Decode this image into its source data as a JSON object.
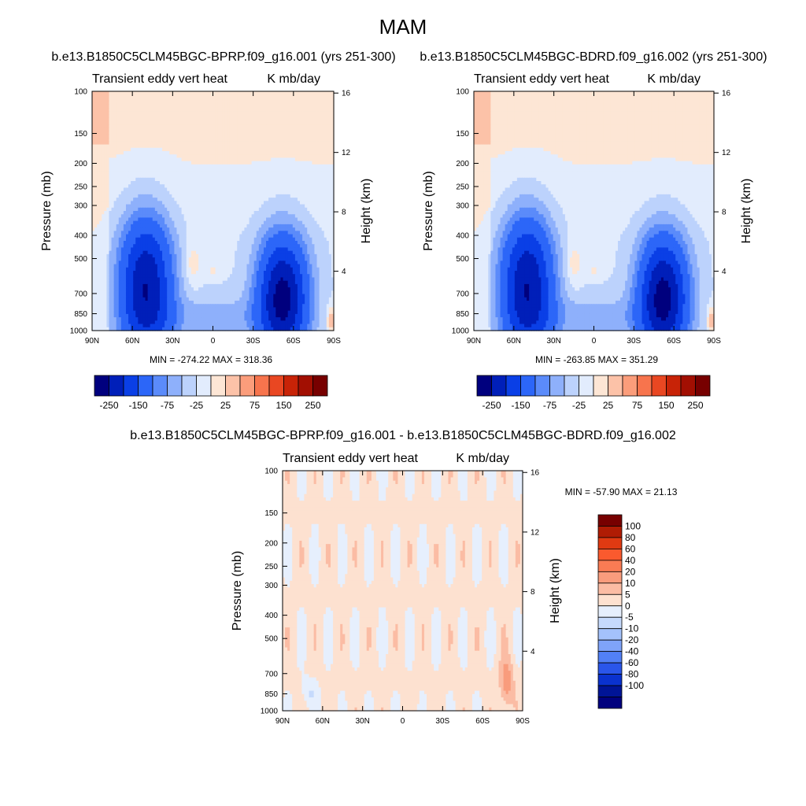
{
  "figure": {
    "title": "MAM"
  },
  "chart_data": [
    {
      "type": "heatmap",
      "run_title": "b.e13.B1850C5CLM45BGC-BPRP.f09_g16.001 (yrs 251-300)",
      "left_label": "Transient eddy vert heat",
      "right_label": "K mb/day",
      "ylabel": "Pressure (mb)",
      "ylabel_right": "Height (km)",
      "x_ticks": [
        "90N",
        "60N",
        "30N",
        "0",
        "30S",
        "60S",
        "90S"
      ],
      "x_values": [
        90,
        60,
        30,
        0,
        -30,
        -60,
        -90
      ],
      "y_ticks": [
        "100",
        "150",
        "200",
        "250",
        "300",
        "400",
        "500",
        "700",
        "850",
        "1000"
      ],
      "y_values": [
        100,
        150,
        200,
        250,
        300,
        400,
        500,
        700,
        850,
        1000
      ],
      "y_right_ticks": [
        "16",
        "12",
        "8",
        "4"
      ],
      "y_right_values": [
        16,
        12,
        8,
        4
      ],
      "ylim": [
        1000,
        100
      ],
      "xlim": [
        90,
        -90
      ],
      "y_scale": "log",
      "stats": "MIN = -274.22  MAX = 318.36",
      "min": -274.22,
      "max": 318.36,
      "colorbar": {
        "orientation": "horizontal",
        "labels": [
          "-250",
          "-150",
          "-75",
          "-25",
          "25",
          "75",
          "150",
          "250"
        ],
        "levels": [
          -250,
          -200,
          -150,
          -100,
          -75,
          -50,
          -25,
          0,
          25,
          50,
          75,
          100,
          150,
          200,
          250
        ],
        "colors": [
          "#00007e",
          "#001fb9",
          "#0a3fe6",
          "#2c66f8",
          "#5b8bfa",
          "#8eb0fb",
          "#bcd2fc",
          "#e2ecfd",
          "#fde6d5",
          "#fcc2a8",
          "#fb9d7b",
          "#f7744d",
          "#e94722",
          "#c82307",
          "#a20f02",
          "#770000"
        ]
      }
    },
    {
      "type": "heatmap",
      "run_title": "b.e13.B1850C5CLM45BGC-BDRD.f09_g16.002 (yrs 251-300)",
      "left_label": "Transient eddy vert heat",
      "right_label": "K mb/day",
      "ylabel": "Pressure (mb)",
      "ylabel_right": "Height (km)",
      "x_ticks": [
        "90N",
        "60N",
        "30N",
        "0",
        "30S",
        "60S",
        "90S"
      ],
      "x_values": [
        90,
        60,
        30,
        0,
        -30,
        -60,
        -90
      ],
      "y_ticks": [
        "100",
        "150",
        "200",
        "250",
        "300",
        "400",
        "500",
        "700",
        "850",
        "1000"
      ],
      "y_values": [
        100,
        150,
        200,
        250,
        300,
        400,
        500,
        700,
        850,
        1000
      ],
      "y_right_ticks": [
        "16",
        "12",
        "8",
        "4"
      ],
      "y_right_values": [
        16,
        12,
        8,
        4
      ],
      "ylim": [
        1000,
        100
      ],
      "xlim": [
        90,
        -90
      ],
      "y_scale": "log",
      "stats": "MIN = -263.85  MAX = 351.29",
      "min": -263.85,
      "max": 351.29,
      "colorbar": {
        "orientation": "horizontal",
        "labels": [
          "-250",
          "-150",
          "-75",
          "-25",
          "25",
          "75",
          "150",
          "250"
        ],
        "levels": [
          -250,
          -200,
          -150,
          -100,
          -75,
          -50,
          -25,
          0,
          25,
          50,
          75,
          100,
          150,
          200,
          250
        ],
        "colors": [
          "#00007e",
          "#001fb9",
          "#0a3fe6",
          "#2c66f8",
          "#5b8bfa",
          "#8eb0fb",
          "#bcd2fc",
          "#e2ecfd",
          "#fde6d5",
          "#fcc2a8",
          "#fb9d7b",
          "#f7744d",
          "#e94722",
          "#c82307",
          "#a20f02",
          "#770000"
        ]
      }
    },
    {
      "type": "heatmap",
      "run_title": "b.e13.B1850C5CLM45BGC-BPRP.f09_g16.001 - b.e13.B1850C5CLM45BGC-BDRD.f09_g16.002",
      "left_label": "Transient eddy vert heat",
      "right_label": "K mb/day",
      "ylabel": "Pressure (mb)",
      "ylabel_right": "Height (km)",
      "x_ticks": [
        "90N",
        "60N",
        "30N",
        "0",
        "30S",
        "60S",
        "90S"
      ],
      "x_values": [
        90,
        60,
        30,
        0,
        -30,
        -60,
        -90
      ],
      "y_ticks": [
        "100",
        "150",
        "200",
        "250",
        "300",
        "400",
        "500",
        "700",
        "850",
        "1000"
      ],
      "y_values": [
        100,
        150,
        200,
        250,
        300,
        400,
        500,
        700,
        850,
        1000
      ],
      "y_right_ticks": [
        "16",
        "12",
        "8",
        "4"
      ],
      "y_right_values": [
        16,
        12,
        8,
        4
      ],
      "ylim": [
        1000,
        100
      ],
      "xlim": [
        90,
        -90
      ],
      "y_scale": "log",
      "stats": "MIN = -57.90  MAX =  21.13",
      "min": -57.9,
      "max": 21.13,
      "colorbar": {
        "orientation": "vertical",
        "labels": [
          "100",
          "80",
          "60",
          "40",
          "20",
          "10",
          "5",
          "0",
          "-5",
          "-10",
          "-20",
          "-40",
          "-60",
          "-80",
          "-100"
        ],
        "levels": [
          100,
          80,
          60,
          40,
          20,
          10,
          5,
          0,
          -5,
          -10,
          -20,
          -40,
          -60,
          -80,
          -100
        ],
        "colors": [
          "#770000",
          "#b01c04",
          "#e03a12",
          "#fa5a2e",
          "#f97b54",
          "#f99c7d",
          "#fbbca4",
          "#fde1d0",
          "#e6effd",
          "#c6dafc",
          "#a4c2fb",
          "#7fa3f9",
          "#5280f6",
          "#2a56ea",
          "#0a32cf",
          "#001496",
          "#00007e"
        ]
      }
    }
  ]
}
